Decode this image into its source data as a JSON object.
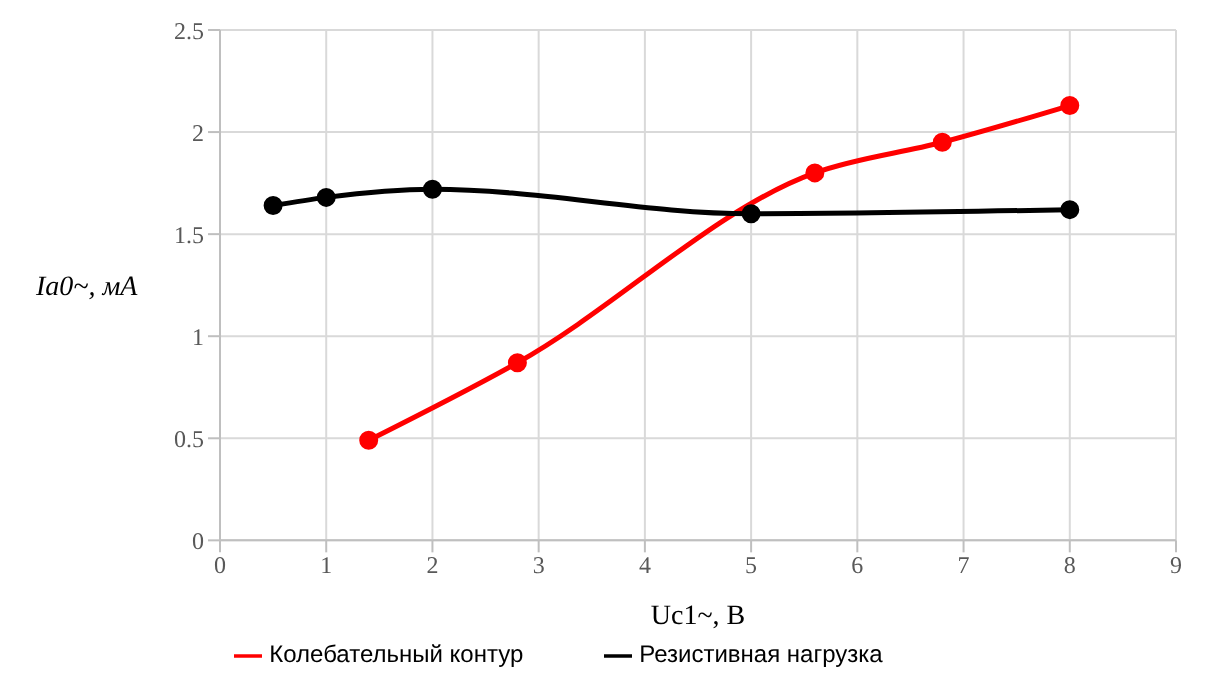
{
  "chart_data": {
    "type": "line",
    "xlabel": "Uc1~, В",
    "ylabel": "Ia0~, мА",
    "xlim": [
      0,
      9
    ],
    "xticks": [
      0,
      1,
      2,
      3,
      4,
      5,
      6,
      7,
      8,
      9
    ],
    "ylim": [
      0,
      2.5
    ],
    "yticks": [
      0,
      0.5,
      1,
      1.5,
      2,
      2.5
    ],
    "grid": true,
    "legend": "bottom",
    "marker": "circle",
    "series": [
      {
        "name": "Колебательный контур",
        "color": "#ff0000",
        "x": [
          1.4,
          2.8,
          5.6,
          6.8,
          8
        ],
        "values": [
          0.49,
          0.87,
          1.8,
          1.95,
          2.13
        ]
      },
      {
        "name": "Резистивная нагрузка",
        "color": "#000000",
        "x": [
          0.5,
          1,
          2,
          5,
          8
        ],
        "values": [
          1.64,
          1.68,
          1.72,
          1.6,
          1.62
        ]
      }
    ]
  }
}
